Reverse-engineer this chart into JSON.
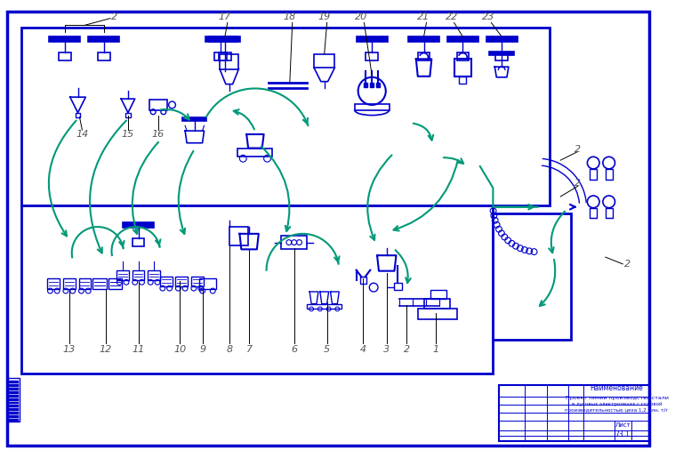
{
  "bg_color": "#ffffff",
  "border_color": "#0000cc",
  "line_color": "#0000cc",
  "flow_color": "#009977",
  "label_color": "#555555",
  "fig_width": 7.59,
  "fig_height": 5.15,
  "dpi": 100,
  "title_text": "Наименование",
  "desc_line1": "Проект линии производства стали",
  "desc_line2": "в дуговых электропечах с годовой",
  "desc_line3": "производительностью цеха 1,2 млн. т/г",
  "sheet_num": "73.1"
}
